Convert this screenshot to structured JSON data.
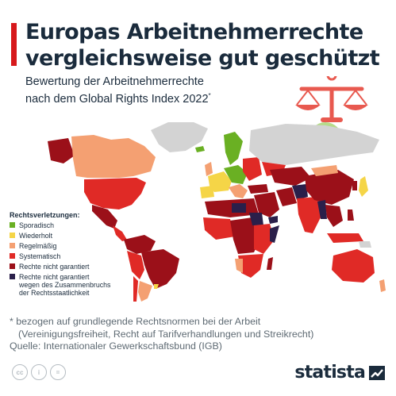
{
  "header": {
    "title_line1": "Europas Arbeitnehmerrechte",
    "title_line2": "vergleichsweise gut geschützt",
    "subtitle_line1": "Bewertung der Arbeitnehmerrechte",
    "subtitle_line2": "nach dem Global Rights Index 2022",
    "subtitle_marker": "*"
  },
  "legend": {
    "title": "Rechtsverletzungen:",
    "items": [
      {
        "label": "Sporadisch",
        "color": "#6ab023"
      },
      {
        "label": "Wiederholt",
        "color": "#f5d547"
      },
      {
        "label": "Regelmäßig",
        "color": "#f4a072"
      },
      {
        "label": "Systematisch",
        "color": "#e02a26"
      },
      {
        "label": "Rechte nicht garantiert",
        "color": "#9b1019"
      },
      {
        "label_line1": "Rechte nicht garantiert",
        "label_line2": "wegen des Zusammenbruchs",
        "label_line3": "der Rechtsstaatlichkeit",
        "color": "#2a1f4a"
      }
    ]
  },
  "colors": {
    "no_data": "#d3d3d3",
    "accent": "#d7191c",
    "check_circle": "#b6db8a",
    "scale_icon": "#e8594f"
  },
  "icons": [
    "scale-icon",
    "checkmark-icon",
    "cc-icon",
    "by-icon",
    "nd-icon",
    "statista-logo-icon"
  ],
  "footnote": {
    "line1": "* bezogen auf grundlegende Rechtsnormen bei der Arbeit",
    "line2": "(Vereinigungsfreiheit, Recht auf Tarifverhandlungen und Streikrecht)",
    "source": "Quelle: Internationaler Gewerkschaftsbund (IGB)"
  },
  "footer": {
    "cc_label": "cc",
    "by_label": "i",
    "nd_label": "=",
    "brand": "statista"
  }
}
